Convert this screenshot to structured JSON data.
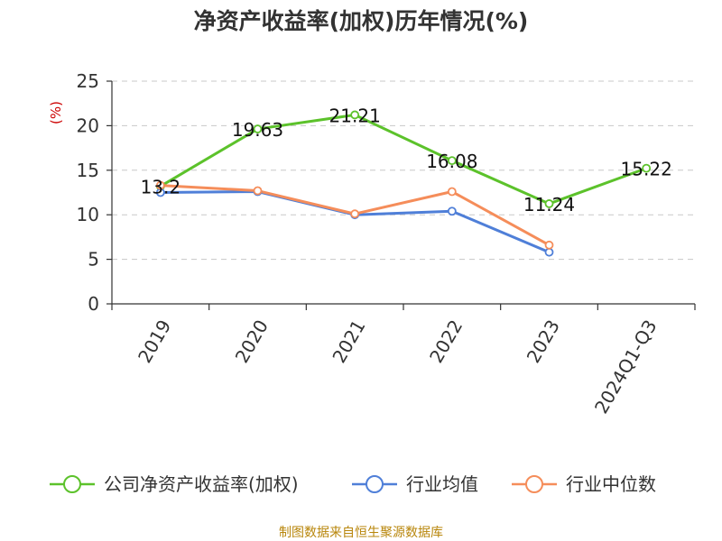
{
  "chart_data": {
    "type": "line",
    "title": "净资产收益率(加权)历年情况(%)",
    "ylabel": "(%)",
    "xlabel": "",
    "ylim": [
      0,
      25
    ],
    "yticks": [
      0,
      5,
      10,
      15,
      20,
      25
    ],
    "grid": true,
    "legend_position": "bottom",
    "categories": [
      "2019",
      "2020",
      "2021",
      "2022",
      "2023",
      "2024Q1-Q3"
    ],
    "series": [
      {
        "name": "公司净资产收益率(加权)",
        "color": "#5cc22b",
        "values": [
          13.2,
          19.63,
          21.21,
          16.08,
          11.24,
          15.22
        ],
        "labels": [
          "13.2",
          "19.63",
          "21.21",
          "16.08",
          "11.24",
          "15.22"
        ]
      },
      {
        "name": "行业均值",
        "color": "#4f7fd8",
        "values": [
          12.5,
          12.6,
          10.0,
          10.4,
          5.8,
          null
        ]
      },
      {
        "name": "行业中位数",
        "color": "#f58d5a",
        "values": [
          13.3,
          12.7,
          10.1,
          12.6,
          6.6,
          null
        ]
      }
    ],
    "source": "制图数据来自恒生聚源数据库",
    "source_color": "#b8860b",
    "unit_color": "#cc0000"
  }
}
